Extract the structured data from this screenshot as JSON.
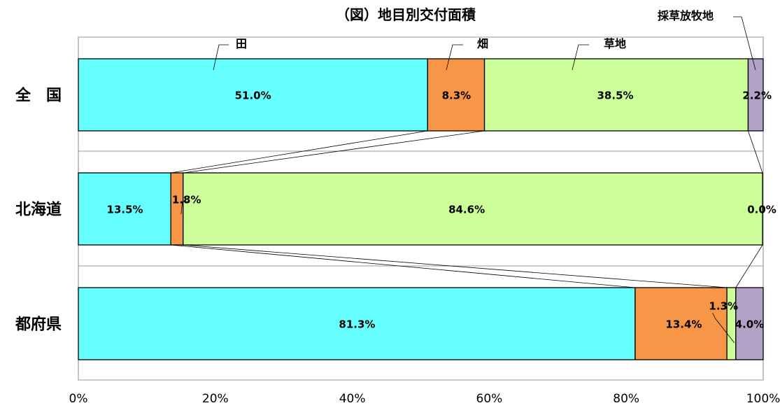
{
  "chart_data": {
    "type": "bar",
    "stacked": true,
    "orientation": "horizontal",
    "title": "（図）地目別交付面積",
    "categories": [
      "全　国",
      "北海道",
      "都府県"
    ],
    "series": [
      {
        "name": "田",
        "color": "#66ffff",
        "values": [
          51.0,
          13.5,
          81.3
        ],
        "labels": [
          "51.0%",
          "13.5%",
          "81.3%"
        ]
      },
      {
        "name": "畑",
        "color": "#f79646",
        "values": [
          8.3,
          1.8,
          13.4
        ],
        "labels": [
          "8.3%",
          "1.8%",
          "13.4%"
        ]
      },
      {
        "name": "草地",
        "color": "#ccff99",
        "values": [
          38.5,
          84.6,
          1.3
        ],
        "labels": [
          "38.5%",
          "84.6%",
          "1.3%"
        ]
      },
      {
        "name": "採草放牧地",
        "color": "#b3a2c7",
        "values": [
          2.2,
          0.0,
          4.0
        ],
        "labels": [
          "2.2%",
          "0.0%",
          "4.0%"
        ]
      }
    ],
    "xlim": [
      0,
      100
    ],
    "xticks": [
      "0%",
      "20%",
      "40%",
      "60%",
      "80%",
      "100%"
    ]
  }
}
